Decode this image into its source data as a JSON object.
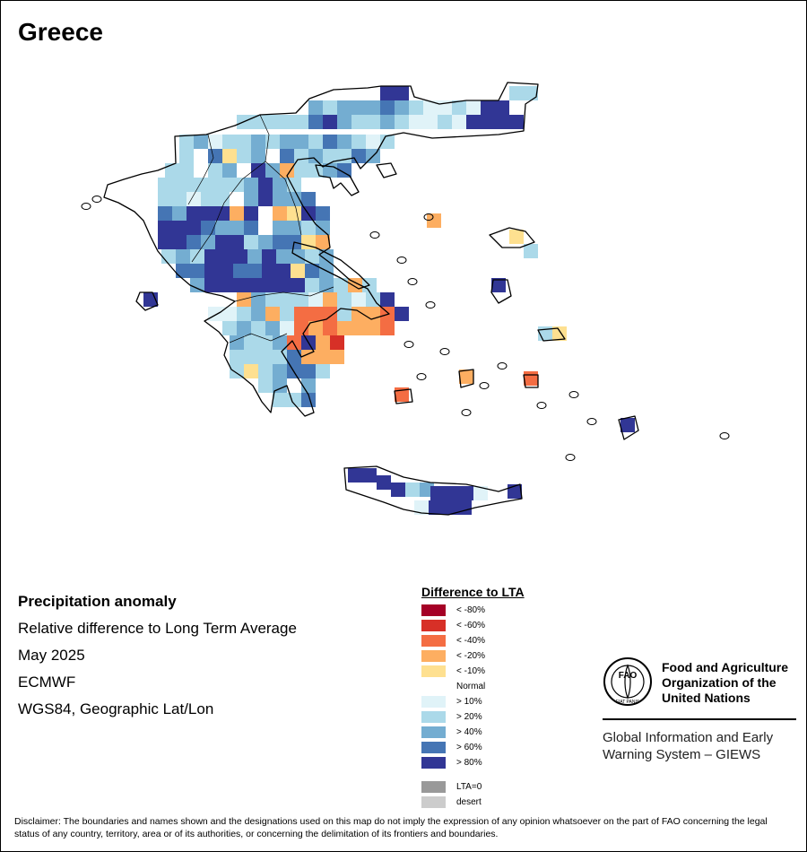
{
  "title": "Greece",
  "meta": {
    "heading": "Precipitation anomaly",
    "line1": "Relative difference to Long Term Average",
    "date": "May 2025",
    "source": "ECMWF",
    "projection": "WGS84, Geographic Lat/Lon"
  },
  "legend": {
    "title": "Difference to LTA",
    "items": [
      {
        "label": "< -80%",
        "color": "#a50026"
      },
      {
        "label": "< -60%",
        "color": "#d73027"
      },
      {
        "label": "< -40%",
        "color": "#f46d43"
      },
      {
        "label": "< -20%",
        "color": "#fdae61"
      },
      {
        "label": "< -10%",
        "color": "#fee090"
      },
      {
        "label": "Normal",
        "color": "#ffffff"
      },
      {
        "label": "> 10%",
        "color": "#e0f3f8"
      },
      {
        "label": "> 20%",
        "color": "#abd9e9"
      },
      {
        "label": "> 40%",
        "color": "#74add1"
      },
      {
        "label": "> 60%",
        "color": "#4575b4"
      },
      {
        "label": "> 80%",
        "color": "#313695"
      }
    ],
    "extra": [
      {
        "label": "LTA=0",
        "color": "#999999"
      },
      {
        "label": "desert",
        "color": "#cccccc"
      }
    ]
  },
  "org": {
    "name": "Food and Agriculture\nOrganization of the\nUnited Nations",
    "system": "Global Information and Early\nWarning System – GIEWS",
    "logo_letters": "FAO",
    "logo_motto": "FIAT PANIS"
  },
  "disclaimer": "Disclaimer: The boundaries and names shown and the designations used on this map do not imply the expression of any opinion whatsoever on the part of FAO concerning the legal status of any country, territory, area or of its authorities, or concerning the delimitation of its frontiers and boundaries."
}
